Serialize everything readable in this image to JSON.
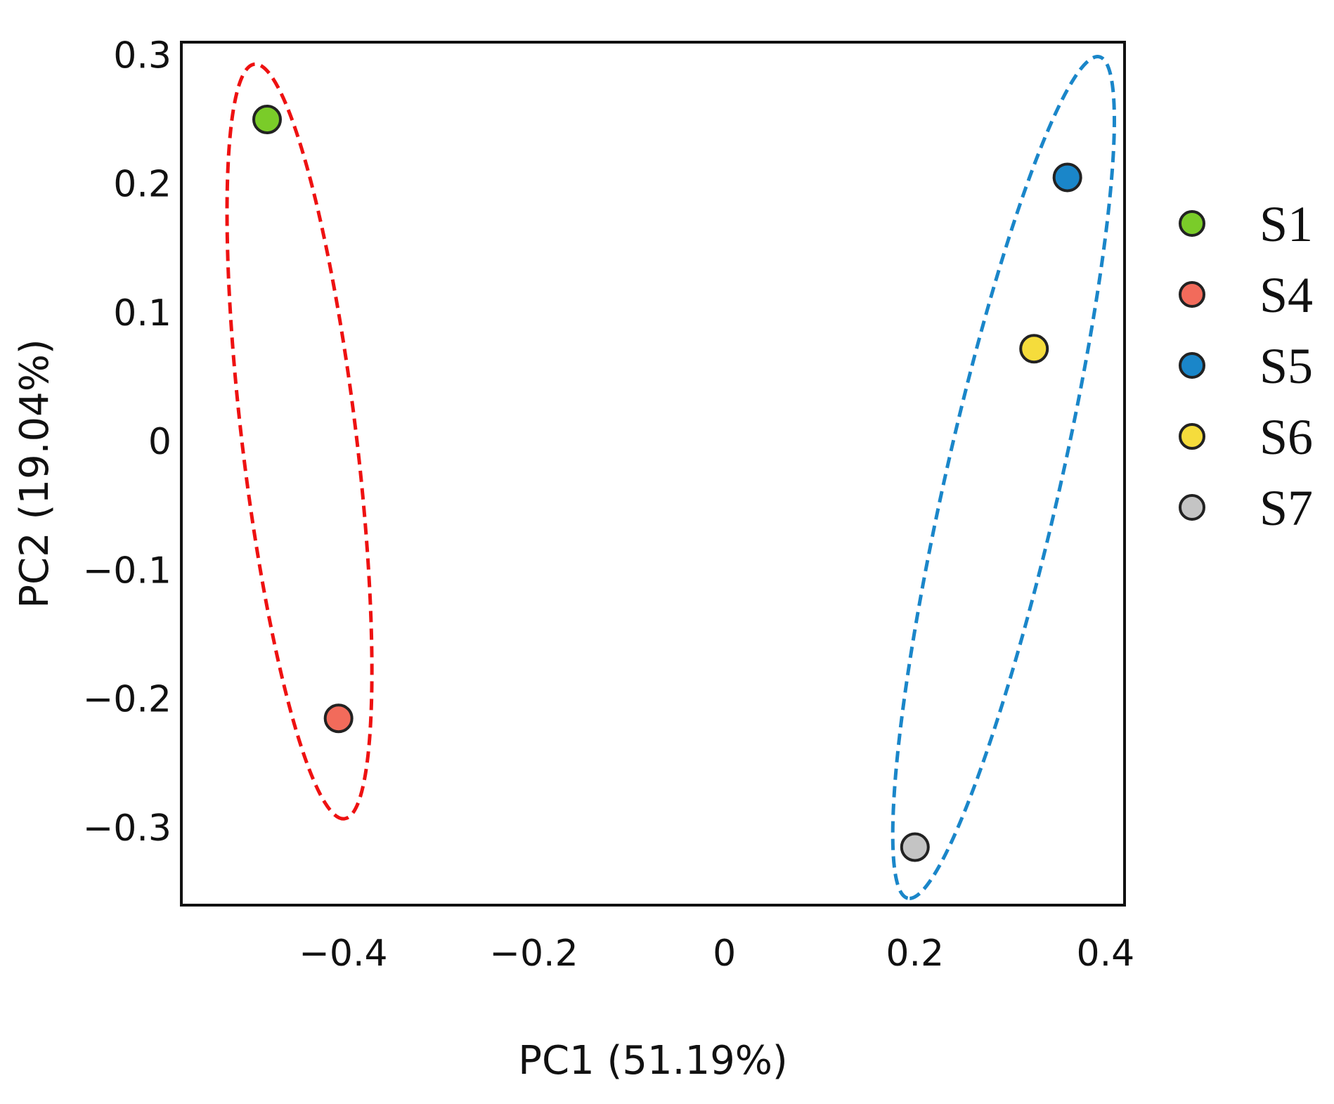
{
  "chart_data": {
    "type": "scatter",
    "xlabel": "PC1 (51.19%)",
    "ylabel": "PC2 (19.04%)",
    "xlim": [
      -0.57,
      0.42
    ],
    "ylim": [
      -0.36,
      0.31
    ],
    "x_ticks": [
      {
        "value": -0.4,
        "label": "−0.4"
      },
      {
        "value": -0.2,
        "label": "−0.2"
      },
      {
        "value": 0,
        "label": "0"
      },
      {
        "value": 0.2,
        "label": "0.2"
      },
      {
        "value": 0.4,
        "label": "0.4"
      }
    ],
    "y_ticks": [
      {
        "value": 0.3,
        "label": "0.3"
      },
      {
        "value": 0.2,
        "label": "0.2"
      },
      {
        "value": 0.1,
        "label": "0.1"
      },
      {
        "value": 0,
        "label": "0"
      },
      {
        "value": -0.1,
        "label": "−0.1"
      },
      {
        "value": -0.2,
        "label": "−0.2"
      },
      {
        "value": -0.3,
        "label": "−0.3"
      }
    ],
    "grid": false,
    "legend_position": "right",
    "series": [
      {
        "name": "S1",
        "color": "#7acc29",
        "x": -0.48,
        "y": 0.25
      },
      {
        "name": "S4",
        "color": "#f26b5b",
        "x": -0.405,
        "y": -0.215
      },
      {
        "name": "S5",
        "color": "#1a86c9",
        "x": 0.36,
        "y": 0.205
      },
      {
        "name": "S6",
        "color": "#f5dc3c",
        "x": 0.325,
        "y": 0.072
      },
      {
        "name": "S7",
        "color": "#c4c4c4",
        "x": 0.2,
        "y": -0.315
      }
    ],
    "ellipses": [
      {
        "color": "#ee1111",
        "style": "dashed",
        "members": [
          "S1",
          "S4"
        ],
        "center": [
          -0.446,
          0.0
        ],
        "semi_major": 0.295,
        "semi_minor": 0.06
      },
      {
        "color": "#1a86c9",
        "style": "dashed",
        "members": [
          "S5",
          "S6",
          "S7"
        ],
        "center": [
          0.293,
          -0.028
        ],
        "semi_major": 0.335,
        "semi_minor": 0.06
      }
    ]
  }
}
